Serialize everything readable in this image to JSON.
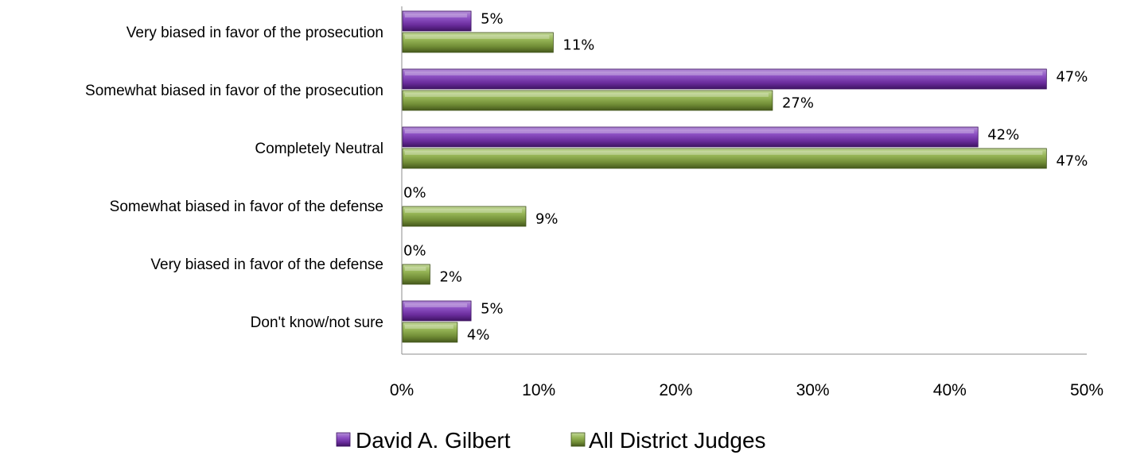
{
  "chart_data": {
    "type": "bar",
    "orientation": "horizontal",
    "categories": [
      "Very biased in favor of the prosecution",
      "Somewhat biased in favor of the prosecution",
      "Completely Neutral",
      "Somewhat biased in favor of the defense",
      "Very biased in favor of the defense",
      "Don't know/not sure"
    ],
    "series": [
      {
        "name": "David A. Gilbert",
        "values": [
          5,
          47,
          42,
          0,
          0,
          5
        ],
        "labels": [
          "5%",
          "47%",
          "42%",
          "0%",
          "0%",
          "5%"
        ],
        "color": "#7030a0"
      },
      {
        "name": "All District Judges",
        "values": [
          11,
          27,
          47,
          9,
          2,
          4
        ],
        "labels": [
          "11%",
          "27%",
          "47%",
          "9%",
          "2%",
          "4%"
        ],
        "color": "#77933c"
      }
    ],
    "x_ticks": [
      "0%",
      "10%",
      "20%",
      "30%",
      "40%",
      "50%"
    ],
    "xlim": [
      0,
      50
    ],
    "grid": false,
    "legend_position": "bottom"
  }
}
